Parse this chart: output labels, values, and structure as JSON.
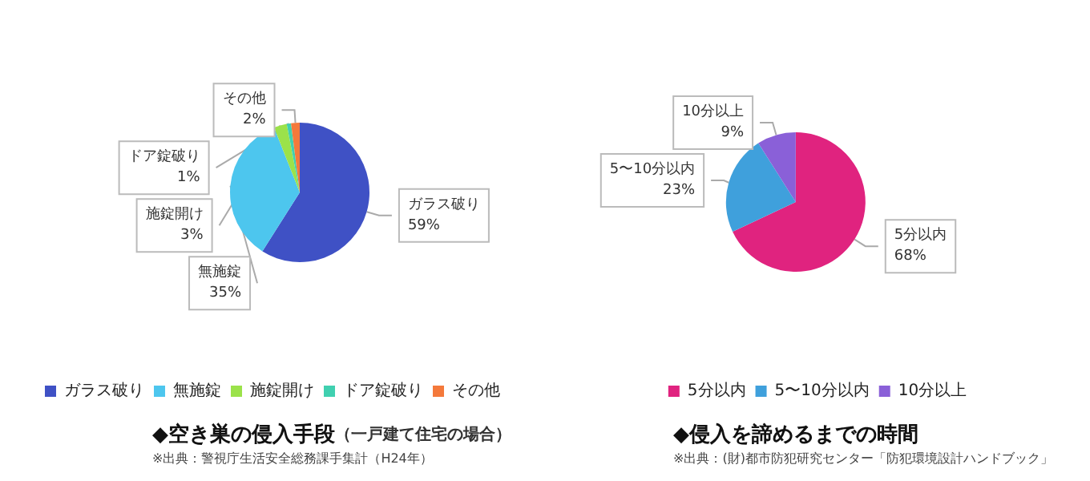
{
  "chart_data": [
    {
      "type": "pie",
      "title": "◆空き巣の侵入手段",
      "subtitle": "（一戸建て住宅の場合）",
      "annotations": [
        "※出典：警視庁生活安全総務課手集計（H24年）"
      ],
      "categories": [
        "ガラス破り",
        "無施錠",
        "施錠開け",
        "ドア錠破り",
        "その他"
      ],
      "values": [
        59,
        35,
        3,
        1,
        2
      ],
      "value_labels": [
        "59%",
        "35%",
        "3%",
        "1%",
        "2%"
      ],
      "colors": [
        "#3f51c5",
        "#4dc6ee",
        "#9be24a",
        "#40d0b0",
        "#f4793b"
      ],
      "legend": "bottom"
    },
    {
      "type": "pie",
      "title": "◆侵入を諦めるまでの時間",
      "annotations": [
        "※出典：(財)都市防犯研究センター「防犯環境設計ハンドブック」"
      ],
      "categories": [
        "5分以内",
        "5〜10分以内",
        "10分以上"
      ],
      "values": [
        68,
        23,
        9
      ],
      "value_labels": [
        "68%",
        "23%",
        "9%"
      ],
      "colors": [
        "#e0237f",
        "#3fa0dc",
        "#8a60d8"
      ],
      "legend": "bottom"
    }
  ]
}
